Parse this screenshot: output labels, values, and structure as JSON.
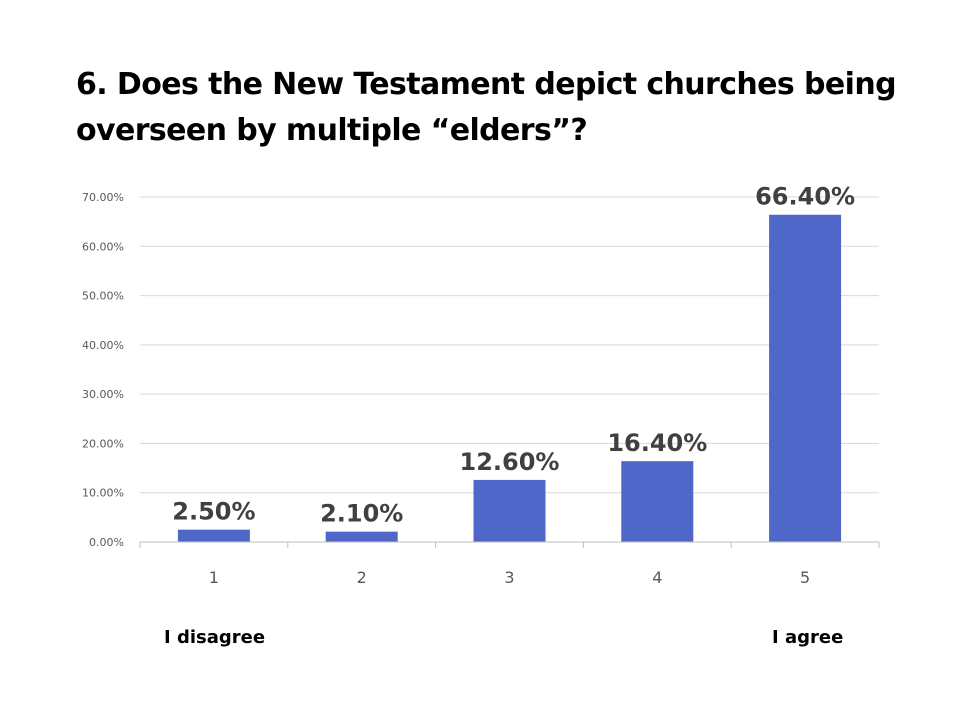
{
  "title": "6. Does the New Testament depict churches being overseen by multiple “elders”?",
  "scale_labels": {
    "low": "I disagree",
    "high": "I agree"
  },
  "colors": {
    "bar": "#4F67C8",
    "grid": "#D9D9D9",
    "axis": "#BFBFBF"
  },
  "chart_data": {
    "type": "bar",
    "categories": [
      "1",
      "2",
      "3",
      "4",
      "5"
    ],
    "values": [
      2.5,
      2.1,
      12.6,
      16.4,
      66.4
    ],
    "data_labels": [
      "2.50%",
      "2.10%",
      "12.60%",
      "16.40%",
      "66.40%"
    ],
    "yticks": [
      "0.00%",
      "10.00%",
      "20.00%",
      "30.00%",
      "40.00%",
      "50.00%",
      "60.00%",
      "70.00%"
    ],
    "ylim": [
      0,
      70
    ],
    "xlabel": "",
    "ylabel": "",
    "grid": true,
    "legend": "none"
  }
}
